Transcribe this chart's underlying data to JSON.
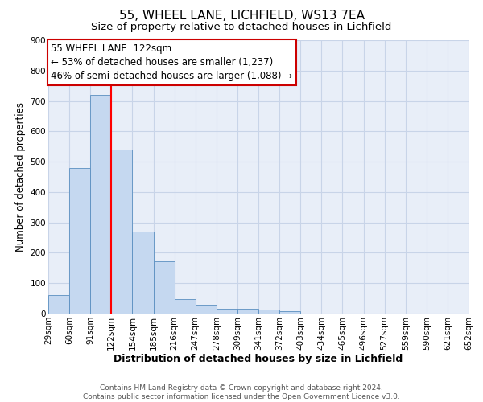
{
  "title": "55, WHEEL LANE, LICHFIELD, WS13 7EA",
  "subtitle": "Size of property relative to detached houses in Lichfield",
  "xlabel": "Distribution of detached houses by size in Lichfield",
  "ylabel": "Number of detached properties",
  "bar_values": [
    60,
    480,
    720,
    540,
    270,
    172,
    48,
    30,
    17,
    17,
    13,
    8,
    0,
    0,
    0,
    0,
    0,
    0,
    0,
    0
  ],
  "bin_labels": [
    "29sqm",
    "60sqm",
    "91sqm",
    "122sqm",
    "154sqm",
    "185sqm",
    "216sqm",
    "247sqm",
    "278sqm",
    "309sqm",
    "341sqm",
    "372sqm",
    "403sqm",
    "434sqm",
    "465sqm",
    "496sqm",
    "527sqm",
    "559sqm",
    "590sqm",
    "621sqm",
    "652sqm"
  ],
  "bar_color": "#c5d8f0",
  "bar_edge_color": "#5a8fc0",
  "vline_x": 3,
  "vline_color": "red",
  "ylim": [
    0,
    900
  ],
  "yticks": [
    0,
    100,
    200,
    300,
    400,
    500,
    600,
    700,
    800,
    900
  ],
  "annotation_line1": "55 WHEEL LANE: 122sqm",
  "annotation_line2": "← 53% of detached houses are smaller (1,237)",
  "annotation_line3": "46% of semi-detached houses are larger (1,088) →",
  "footer_text": "Contains HM Land Registry data © Crown copyright and database right 2024.\nContains public sector information licensed under the Open Government Licence v3.0.",
  "background_color": "#ffffff",
  "plot_bg_color": "#e8eef8",
  "grid_color": "#c8d4e8",
  "title_fontsize": 11,
  "subtitle_fontsize": 9.5,
  "xlabel_fontsize": 9,
  "ylabel_fontsize": 8.5,
  "tick_fontsize": 7.5,
  "annot_fontsize": 8.5,
  "footer_fontsize": 6.5
}
